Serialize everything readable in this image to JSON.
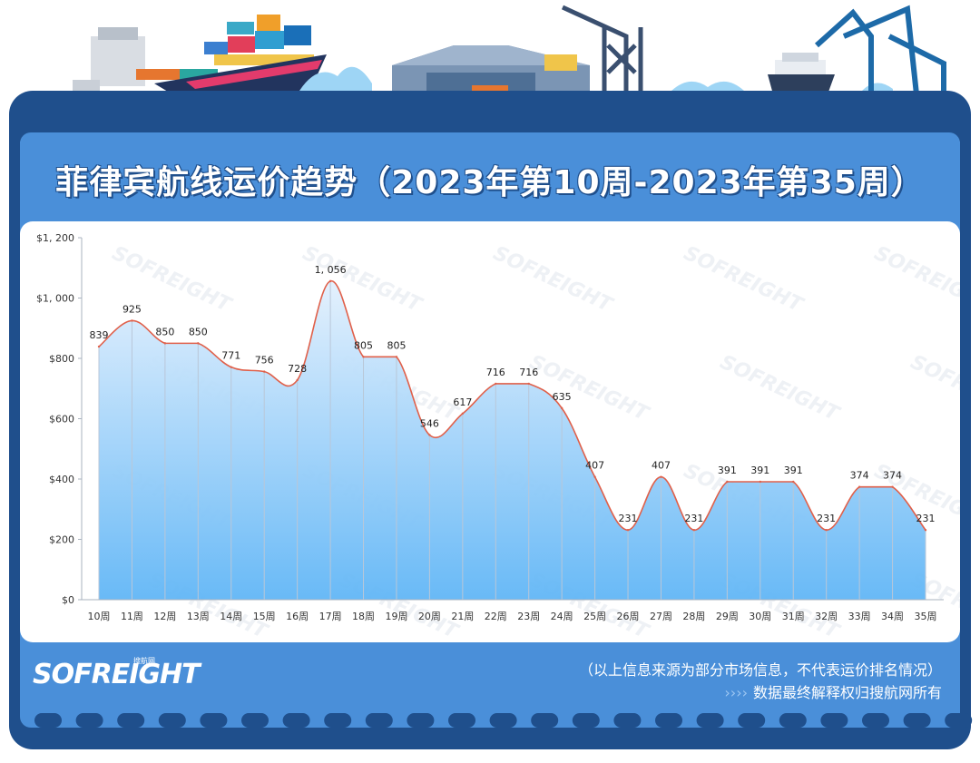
{
  "page": {
    "title": "菲律宾航线运价趋势（2023年第10周-2023年第35周）",
    "brand": "SOFREIGHT",
    "brand_sub": "搜航网",
    "footnote": "（以上信息来源为部分市场信息，不代表运价排名情况）",
    "footnote_arrows": "››››",
    "footnote2": "数据最终解释权归搜航网所有",
    "watermark": "SOFREIGHT"
  },
  "colors": {
    "frame": "#1f4f8c",
    "panel": "#4a8fd9",
    "line": "#e0604a",
    "area_top": "#e3f0fd",
    "area_bottom": "#61b6f6"
  },
  "chart_data": {
    "type": "area",
    "title": "菲律宾航线运价趋势（2023年第10周-2023年第35周）",
    "xlabel": "",
    "ylabel": "",
    "categories": [
      "10周",
      "11周",
      "12周",
      "13周",
      "14周",
      "15周",
      "16周",
      "17周",
      "18周",
      "19周",
      "20周",
      "21周",
      "22周",
      "23周",
      "24周",
      "25周",
      "26周",
      "27周",
      "28周",
      "29周",
      "30周",
      "31周",
      "32周",
      "33周",
      "34周",
      "35周"
    ],
    "series": [
      {
        "values": [
          839,
          925,
          850,
          850,
          771,
          756,
          728,
          1056,
          805,
          805,
          546,
          617,
          716,
          716,
          635,
          407,
          231,
          407,
          231,
          391,
          391,
          391,
          231,
          374,
          374,
          231
        ],
        "labels": [
          "839",
          "925",
          "850",
          "850",
          "771",
          "756",
          "728",
          "1, 056",
          "805",
          "805",
          "546",
          "617",
          "716",
          "716",
          "635",
          "407",
          "231",
          "407",
          "231",
          "391",
          "391",
          "391",
          "231",
          "374",
          "374",
          "231"
        ]
      }
    ],
    "ylim": [
      0,
      1200
    ],
    "yticks": [
      0,
      200,
      400,
      600,
      800,
      1000,
      1200
    ],
    "ytick_labels": [
      "$0",
      "$200",
      "$400",
      "$600",
      "$800",
      "$1, 000",
      "$1, 200"
    ],
    "grid": "vertical",
    "legend": "none"
  }
}
